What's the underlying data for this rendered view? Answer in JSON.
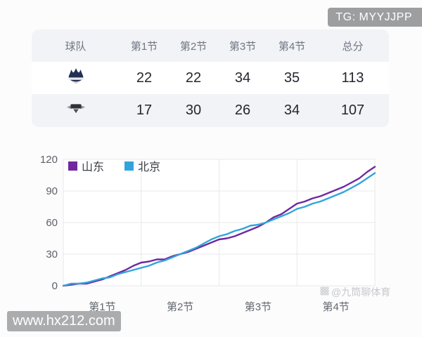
{
  "badges": {
    "tg": "TG: MYYJJPP",
    "site": "www.hx212.com",
    "watermark": "@九筒聊体育"
  },
  "score_table": {
    "headers": [
      "球队",
      "第1节",
      "第2节",
      "第3节",
      "第4节",
      "总分"
    ],
    "rows": [
      {
        "team": "山东",
        "logo_icon": "shandong-team-logo",
        "scores": [
          "22",
          "22",
          "34",
          "35",
          "113"
        ]
      },
      {
        "team": "北京",
        "logo_icon": "beijing-team-logo",
        "scores": [
          "17",
          "30",
          "26",
          "34",
          "107"
        ]
      }
    ]
  },
  "chart_data": {
    "type": "line",
    "title": "",
    "xlabel": "",
    "ylabel": "",
    "x_axis_labels": [
      "第1节",
      "第2节",
      "第3节",
      "第4节"
    ],
    "y_ticks": [
      0,
      30,
      60,
      90,
      120
    ],
    "ylim": [
      0,
      120
    ],
    "xlim": [
      0,
      4
    ],
    "grid": true,
    "legend_position": "top-left",
    "x": [
      0,
      0.1,
      0.2,
      0.3,
      0.4,
      0.5,
      0.6,
      0.7,
      0.8,
      0.9,
      1.0,
      1.1,
      1.2,
      1.3,
      1.4,
      1.5,
      1.6,
      1.7,
      1.8,
      1.9,
      2.0,
      2.1,
      2.2,
      2.3,
      2.4,
      2.5,
      2.6,
      2.7,
      2.8,
      2.9,
      3.0,
      3.1,
      3.2,
      3.3,
      3.4,
      3.5,
      3.6,
      3.7,
      3.8,
      3.9,
      4.0
    ],
    "series": [
      {
        "name": "山东",
        "color": "#6f28a0",
        "quarter_scores": [
          22,
          22,
          34,
          35
        ],
        "total": 113,
        "values": [
          0,
          1,
          2,
          2,
          4,
          6,
          9,
          12,
          15,
          19,
          22,
          23,
          25,
          25,
          28,
          30,
          32,
          35,
          38,
          41,
          44,
          45,
          47,
          50,
          53,
          56,
          60,
          65,
          68,
          73,
          78,
          80,
          83,
          85,
          88,
          91,
          94,
          98,
          102,
          108,
          113
        ]
      },
      {
        "name": "北京",
        "color": "#31a5db",
        "quarter_scores": [
          17,
          30,
          26,
          34
        ],
        "total": 107,
        "values": [
          0,
          2,
          2,
          3,
          5,
          7,
          8,
          11,
          13,
          15,
          17,
          19,
          22,
          24,
          27,
          30,
          33,
          36,
          40,
          44,
          47,
          49,
          52,
          54,
          57,
          58,
          60,
          63,
          66,
          69,
          73,
          75,
          78,
          80,
          83,
          86,
          89,
          93,
          97,
          102,
          107
        ]
      }
    ]
  },
  "colors": {
    "page_bg": "#fcfcfd",
    "stripe_bg": "#f2f3f6",
    "grid_line": "#e7e8ea",
    "tg_badge_bg": "#9d9ea0",
    "site_badge_bg": "#abacad"
  }
}
